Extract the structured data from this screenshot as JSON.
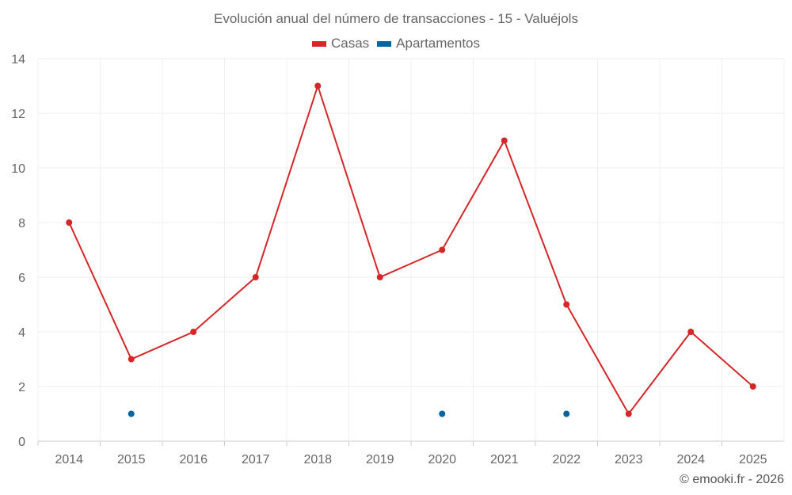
{
  "chart_data": {
    "type": "line",
    "title": "Evolución anual del número de transacciones - 15 - Valuéjols",
    "categories": [
      "2014",
      "2015",
      "2016",
      "2017",
      "2018",
      "2019",
      "2020",
      "2021",
      "2022",
      "2023",
      "2024",
      "2025"
    ],
    "series": [
      {
        "name": "Casas",
        "color": "#d62728",
        "values": [
          8,
          3,
          4,
          6,
          13,
          6,
          7,
          11,
          5,
          1,
          4,
          2
        ]
      },
      {
        "name": "Apartamentos",
        "color": "#03659f",
        "values": [
          null,
          1,
          null,
          null,
          null,
          null,
          1,
          null,
          1,
          null,
          null,
          null
        ]
      }
    ],
    "ylim": [
      0,
      14
    ],
    "yticks": [
      0,
      2,
      4,
      6,
      8,
      10,
      12,
      14
    ],
    "xlabel": "",
    "ylabel": "",
    "grid": true,
    "legend": "top-center"
  },
  "credit": "© emooki.fr - 2026"
}
